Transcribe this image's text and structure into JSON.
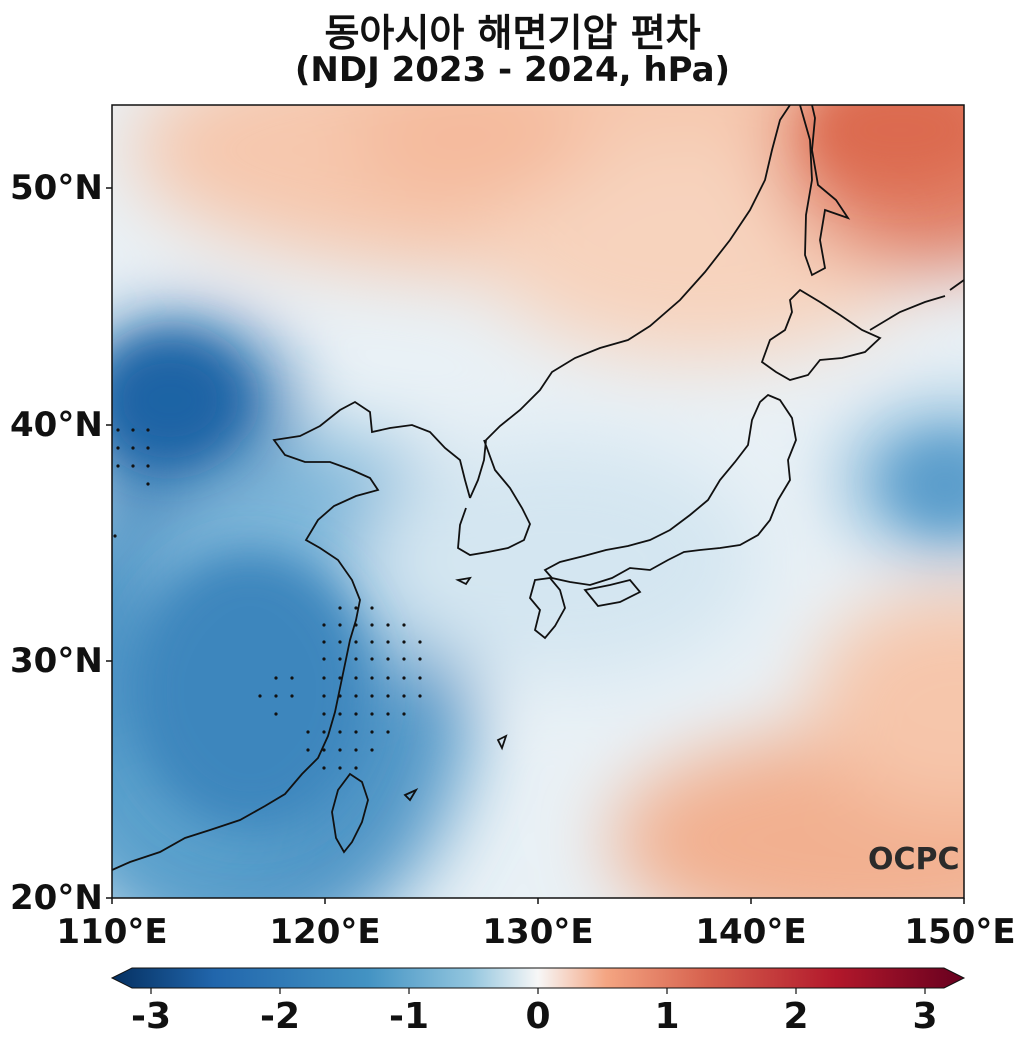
{
  "title_line1": "동아시아 해면기압 편차",
  "title_line2": "(NDJ 2023 - 2024, hPa)",
  "lat_labels": [
    "50°N",
    "40°N",
    "30°N",
    "20°N"
  ],
  "lon_labels": [
    "110°E",
    "120°E",
    "130°E",
    "140°E",
    "150°E"
  ],
  "colorbar": {
    "ticks": [
      "-3",
      "-2",
      "-1",
      "0",
      "1",
      "2",
      "3"
    ],
    "range": [
      -3,
      3
    ],
    "colors": [
      "#053061",
      "#2166ac",
      "#4393c3",
      "#92c5de",
      "#f7f7f7",
      "#f4a582",
      "#d6604d",
      "#b2182b",
      "#67001f"
    ]
  },
  "logo": "OCPC"
}
